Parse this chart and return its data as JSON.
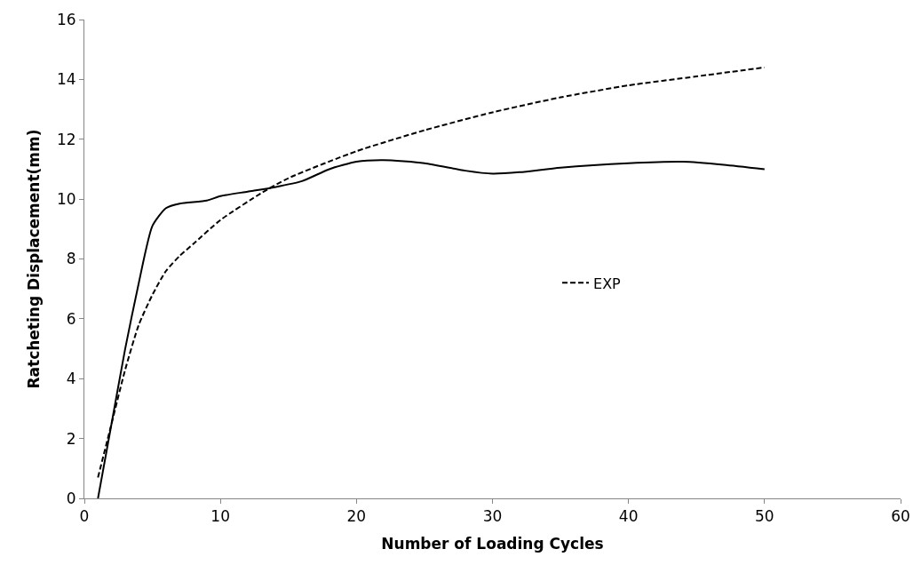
{
  "chart_data": {
    "type": "line",
    "xlabel": "Number of Loading Cycles",
    "ylabel": "Ratcheting Displacement(mm)",
    "xlim": [
      0,
      60
    ],
    "xticks": [
      0,
      10,
      20,
      30,
      40,
      50,
      60
    ],
    "ylim": [
      0,
      16
    ],
    "yticks": [
      0,
      2,
      4,
      6,
      8,
      10,
      12,
      14,
      16
    ],
    "legend": "right",
    "marker": "none",
    "series": [
      {
        "name": "EXP",
        "color": "#000000",
        "line_style": "dashed",
        "x": [
          1,
          2,
          3,
          4,
          5,
          6,
          7,
          8,
          10,
          13,
          15,
          20,
          25,
          30,
          35,
          40,
          45,
          50
        ],
        "values": [
          0.7,
          2.5,
          4.3,
          5.8,
          6.8,
          7.6,
          8.1,
          8.5,
          9.3,
          10.2,
          10.7,
          11.6,
          12.3,
          12.9,
          13.4,
          13.8,
          14.1,
          14.4
        ]
      },
      {
        "color": "#000000",
        "line_style": "solid",
        "x": [
          1,
          2,
          3,
          4,
          5,
          6,
          7,
          9,
          10,
          12,
          14,
          16,
          18,
          20,
          22,
          25,
          28,
          30,
          32,
          35,
          40,
          44,
          47,
          50
        ],
        "values": [
          0,
          2.5,
          5,
          7.2,
          9.1,
          9.7,
          9.85,
          9.95,
          10.1,
          10.25,
          10.4,
          10.6,
          11.0,
          11.25,
          11.3,
          11.2,
          10.95,
          10.85,
          10.9,
          11.05,
          11.2,
          11.25,
          11.15,
          11.0
        ]
      }
    ]
  }
}
